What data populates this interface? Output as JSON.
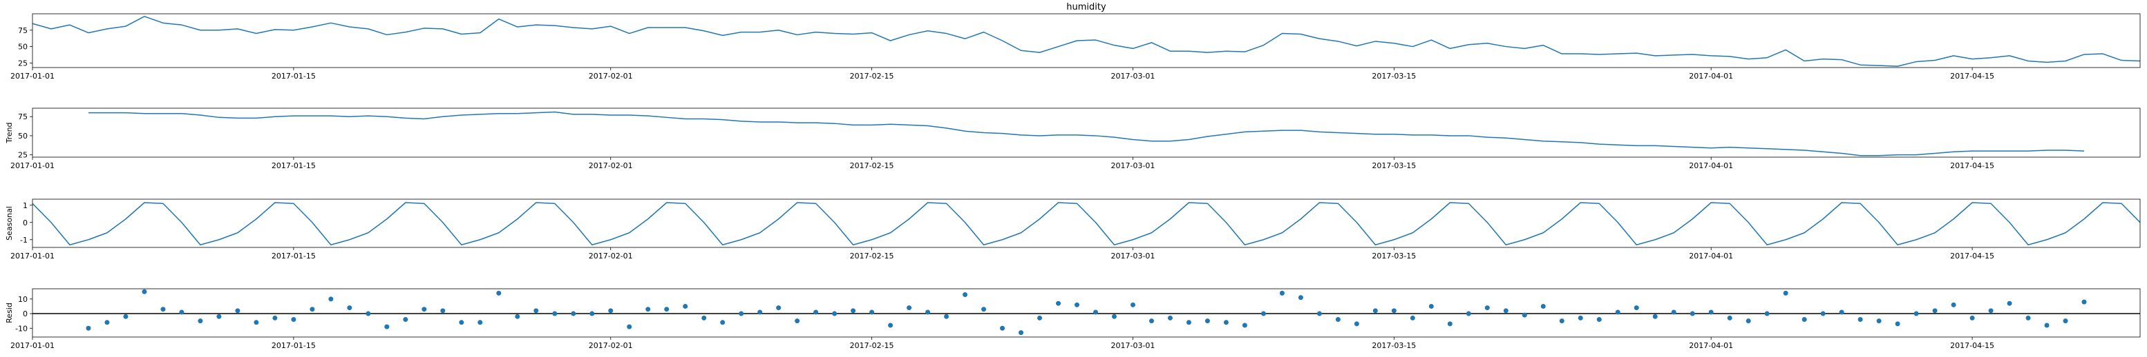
{
  "chart_data": [
    {
      "type": "line",
      "title": "humidity",
      "ylabel": "",
      "xlabel": "",
      "ylim": [
        18,
        100
      ],
      "yticks": [
        25,
        50,
        75
      ],
      "xrange": [
        "2017-01-01",
        "2017-04-24"
      ],
      "xticks": [
        "2017-01-01",
        "2017-01-15",
        "2017-02-01",
        "2017-02-15",
        "2017-03-01",
        "2017-03-15",
        "2017-04-01",
        "2017-04-15"
      ],
      "grid": false,
      "color": "#1f77b4",
      "x": [
        "2017-01-01",
        "2017-01-02",
        "2017-01-03",
        "2017-01-04",
        "2017-01-05",
        "2017-01-06",
        "2017-01-07",
        "2017-01-08",
        "2017-01-09",
        "2017-01-10",
        "2017-01-11",
        "2017-01-12",
        "2017-01-13",
        "2017-01-14",
        "2017-01-15",
        "2017-01-16",
        "2017-01-17",
        "2017-01-18",
        "2017-01-19",
        "2017-01-20",
        "2017-01-21",
        "2017-01-22",
        "2017-01-23",
        "2017-01-24",
        "2017-01-25",
        "2017-01-26",
        "2017-01-27",
        "2017-01-28",
        "2017-01-29",
        "2017-01-30",
        "2017-01-31",
        "2017-02-01",
        "2017-02-02",
        "2017-02-03",
        "2017-02-04",
        "2017-02-05",
        "2017-02-06",
        "2017-02-07",
        "2017-02-08",
        "2017-02-09",
        "2017-02-10",
        "2017-02-11",
        "2017-02-12",
        "2017-02-13",
        "2017-02-14",
        "2017-02-15",
        "2017-02-16",
        "2017-02-17",
        "2017-02-18",
        "2017-02-19",
        "2017-02-20",
        "2017-02-21",
        "2017-02-22",
        "2017-02-23",
        "2017-02-24",
        "2017-02-25",
        "2017-02-26",
        "2017-02-27",
        "2017-02-28",
        "2017-03-01",
        "2017-03-02",
        "2017-03-03",
        "2017-03-04",
        "2017-03-05",
        "2017-03-06",
        "2017-03-07",
        "2017-03-08",
        "2017-03-09",
        "2017-03-10",
        "2017-03-11",
        "2017-03-12",
        "2017-03-13",
        "2017-03-14",
        "2017-03-15",
        "2017-03-16",
        "2017-03-17",
        "2017-03-18",
        "2017-03-19",
        "2017-03-20",
        "2017-03-21",
        "2017-03-22",
        "2017-03-23",
        "2017-03-24",
        "2017-03-25",
        "2017-03-26",
        "2017-03-27",
        "2017-03-28",
        "2017-03-29",
        "2017-03-30",
        "2017-03-31",
        "2017-04-01",
        "2017-04-02",
        "2017-04-03",
        "2017-04-04",
        "2017-04-05",
        "2017-04-06",
        "2017-04-07",
        "2017-04-08",
        "2017-04-09",
        "2017-04-10",
        "2017-04-11",
        "2017-04-12",
        "2017-04-13",
        "2017-04-14",
        "2017-04-15",
        "2017-04-16",
        "2017-04-17",
        "2017-04-18",
        "2017-04-19",
        "2017-04-20",
        "2017-04-21",
        "2017-04-22",
        "2017-04-23",
        "2017-04-24"
      ],
      "values": [
        85.0,
        77.0,
        83.0,
        71.0,
        77.0,
        81.0,
        96.0,
        86.0,
        83.0,
        75.0,
        75.0,
        77.0,
        70.0,
        76.0,
        75.0,
        80.0,
        86.0,
        80.0,
        77.0,
        68.0,
        72.0,
        78.0,
        77.0,
        69.0,
        71.0,
        92.0,
        80.0,
        83.0,
        82.0,
        79.0,
        77.0,
        81.0,
        70.0,
        79.0,
        79.0,
        79.0,
        74.0,
        67.0,
        72.0,
        72.0,
        75.0,
        68.0,
        72.0,
        70.0,
        69.0,
        71.0,
        59.0,
        68.0,
        74.0,
        70.0,
        62.0,
        72.0,
        59.0,
        44.0,
        41.0,
        50.0,
        59.0,
        60.0,
        52.0,
        47.0,
        56.0,
        43.0,
        43.0,
        41.0,
        43.0,
        42.0,
        52.0,
        70.0,
        69.0,
        62.0,
        58.0,
        51.0,
        58.0,
        55.0,
        50.0,
        60.0,
        47.0,
        53.0,
        55.0,
        50.0,
        47.0,
        52.0,
        39.0,
        39.0,
        38.0,
        39.0,
        40.0,
        36.0,
        37.0,
        38.0,
        36.0,
        35.0,
        31.0,
        33.0,
        45.0,
        28.0,
        31.0,
        30.0,
        22.0,
        21.0,
        20.0,
        27.0,
        29.0,
        36.0,
        31.0,
        33.0,
        36.0,
        28.0,
        26.0,
        28.0,
        38.0,
        39.0,
        29.0,
        28.0
      ]
    },
    {
      "type": "line",
      "title": "",
      "ylabel": "Trend",
      "xlabel": "",
      "ylim": [
        22,
        86
      ],
      "yticks": [
        25,
        50,
        75
      ],
      "xrange": [
        "2017-01-01",
        "2017-04-24"
      ],
      "xticks": [
        "2017-01-01",
        "2017-01-15",
        "2017-02-01",
        "2017-02-15",
        "2017-03-01",
        "2017-03-15",
        "2017-04-01",
        "2017-04-15"
      ],
      "grid": false,
      "color": "#1f77b4",
      "x": [
        "2017-01-04",
        "2017-01-05",
        "2017-01-06",
        "2017-01-07",
        "2017-01-08",
        "2017-01-09",
        "2017-01-10",
        "2017-01-11",
        "2017-01-12",
        "2017-01-13",
        "2017-01-14",
        "2017-01-15",
        "2017-01-16",
        "2017-01-17",
        "2017-01-18",
        "2017-01-19",
        "2017-01-20",
        "2017-01-21",
        "2017-01-22",
        "2017-01-23",
        "2017-01-24",
        "2017-01-25",
        "2017-01-26",
        "2017-01-27",
        "2017-01-28",
        "2017-01-29",
        "2017-01-30",
        "2017-01-31",
        "2017-02-01",
        "2017-02-02",
        "2017-02-03",
        "2017-02-04",
        "2017-02-05",
        "2017-02-06",
        "2017-02-07",
        "2017-02-08",
        "2017-02-09",
        "2017-02-10",
        "2017-02-11",
        "2017-02-12",
        "2017-02-13",
        "2017-02-14",
        "2017-02-15",
        "2017-02-16",
        "2017-02-17",
        "2017-02-18",
        "2017-02-19",
        "2017-02-20",
        "2017-02-21",
        "2017-02-22",
        "2017-02-23",
        "2017-02-24",
        "2017-02-25",
        "2017-02-26",
        "2017-02-27",
        "2017-02-28",
        "2017-03-01",
        "2017-03-02",
        "2017-03-03",
        "2017-03-04",
        "2017-03-05",
        "2017-03-06",
        "2017-03-07",
        "2017-03-08",
        "2017-03-09",
        "2017-03-10",
        "2017-03-11",
        "2017-03-12",
        "2017-03-13",
        "2017-03-14",
        "2017-03-15",
        "2017-03-16",
        "2017-03-17",
        "2017-03-18",
        "2017-03-19",
        "2017-03-20",
        "2017-03-21",
        "2017-03-22",
        "2017-03-23",
        "2017-03-24",
        "2017-03-25",
        "2017-03-26",
        "2017-03-27",
        "2017-03-28",
        "2017-03-29",
        "2017-03-30",
        "2017-03-31",
        "2017-04-01",
        "2017-04-02",
        "2017-04-03",
        "2017-04-04",
        "2017-04-05",
        "2017-04-06",
        "2017-04-07",
        "2017-04-08",
        "2017-04-09",
        "2017-04-10",
        "2017-04-11",
        "2017-04-12",
        "2017-04-13",
        "2017-04-14",
        "2017-04-15",
        "2017-04-16",
        "2017-04-17",
        "2017-04-18",
        "2017-04-19",
        "2017-04-20",
        "2017-04-21"
      ],
      "values": [
        80.0,
        80.0,
        80.0,
        79.0,
        79.0,
        79.0,
        77.0,
        74.0,
        73.0,
        73.0,
        75.0,
        76.0,
        76.0,
        76.0,
        75.0,
        76.0,
        75.0,
        73.0,
        72.0,
        75.0,
        77.0,
        78.0,
        79.0,
        79.0,
        80.0,
        81.0,
        78.0,
        78.0,
        77.0,
        77.0,
        76.0,
        74.0,
        72.0,
        72.0,
        71.0,
        69.0,
        68.0,
        68.0,
        67.0,
        67.0,
        66.0,
        64.0,
        64.0,
        65.0,
        64.0,
        63.0,
        60.0,
        56.0,
        54.0,
        53.0,
        51.0,
        50.0,
        51.0,
        51.0,
        50.0,
        48.0,
        45.0,
        43.0,
        43.0,
        45.0,
        49.0,
        52.0,
        55.0,
        56.0,
        57.0,
        57.0,
        55.0,
        54.0,
        53.0,
        52.0,
        52.0,
        51.0,
        51.0,
        50.0,
        50.0,
        48.0,
        47.0,
        45.0,
        43.0,
        42.0,
        41.0,
        39.0,
        38.0,
        37.0,
        37.0,
        36.0,
        35.0,
        34.0,
        35.0,
        34.0,
        33.0,
        32.0,
        31.0,
        29.0,
        27.0,
        24.0,
        24.0,
        25.0,
        25.0,
        27.0,
        29.0,
        30.0,
        30.0,
        30.0,
        30.0,
        31.0,
        31.0,
        30.0
      ]
    },
    {
      "type": "line",
      "title": "",
      "ylabel": "Seasonal",
      "xlabel": "",
      "ylim": [
        -1.45,
        1.35
      ],
      "yticks": [
        -1,
        0,
        1
      ],
      "xrange": [
        "2017-01-01",
        "2017-04-24"
      ],
      "xticks": [
        "2017-01-01",
        "2017-01-15",
        "2017-02-01",
        "2017-02-15",
        "2017-03-01",
        "2017-03-15",
        "2017-04-01",
        "2017-04-15"
      ],
      "grid": false,
      "color": "#1f77b4",
      "period": 7,
      "start": "2017-01-01",
      "end": "2017-04-24",
      "pattern": [
        1.1,
        0.0,
        -1.3,
        -1.0,
        -0.6,
        0.2,
        1.15
      ]
    },
    {
      "type": "scatter",
      "title": "",
      "ylabel": "Resid",
      "xlabel": "",
      "ylim": [
        -16,
        17
      ],
      "yticks": [
        -10,
        0,
        10
      ],
      "zero_line": true,
      "xrange": [
        "2017-01-01",
        "2017-04-24"
      ],
      "xticks": [
        "2017-01-01",
        "2017-01-15",
        "2017-02-01",
        "2017-02-15",
        "2017-03-01",
        "2017-03-15",
        "2017-04-01",
        "2017-04-15"
      ],
      "grid": false,
      "color": "#1f77b4",
      "x": [
        "2017-01-04",
        "2017-01-05",
        "2017-01-06",
        "2017-01-07",
        "2017-01-08",
        "2017-01-09",
        "2017-01-10",
        "2017-01-11",
        "2017-01-12",
        "2017-01-13",
        "2017-01-14",
        "2017-01-15",
        "2017-01-16",
        "2017-01-17",
        "2017-01-18",
        "2017-01-19",
        "2017-01-20",
        "2017-01-21",
        "2017-01-22",
        "2017-01-23",
        "2017-01-24",
        "2017-01-25",
        "2017-01-26",
        "2017-01-27",
        "2017-01-28",
        "2017-01-29",
        "2017-01-30",
        "2017-01-31",
        "2017-02-01",
        "2017-02-02",
        "2017-02-03",
        "2017-02-04",
        "2017-02-05",
        "2017-02-06",
        "2017-02-07",
        "2017-02-08",
        "2017-02-09",
        "2017-02-10",
        "2017-02-11",
        "2017-02-12",
        "2017-02-13",
        "2017-02-14",
        "2017-02-15",
        "2017-02-16",
        "2017-02-17",
        "2017-02-18",
        "2017-02-19",
        "2017-02-20",
        "2017-02-21",
        "2017-02-22",
        "2017-02-23",
        "2017-02-24",
        "2017-02-25",
        "2017-02-26",
        "2017-02-27",
        "2017-02-28",
        "2017-03-01",
        "2017-03-02",
        "2017-03-03",
        "2017-03-04",
        "2017-03-05",
        "2017-03-06",
        "2017-03-07",
        "2017-03-08",
        "2017-03-09",
        "2017-03-10",
        "2017-03-11",
        "2017-03-12",
        "2017-03-13",
        "2017-03-14",
        "2017-03-15",
        "2017-03-16",
        "2017-03-17",
        "2017-03-18",
        "2017-03-19",
        "2017-03-20",
        "2017-03-21",
        "2017-03-22",
        "2017-03-23",
        "2017-03-24",
        "2017-03-25",
        "2017-03-26",
        "2017-03-27",
        "2017-03-28",
        "2017-03-29",
        "2017-03-30",
        "2017-03-31",
        "2017-04-01",
        "2017-04-02",
        "2017-04-03",
        "2017-04-04",
        "2017-04-05",
        "2017-04-06",
        "2017-04-07",
        "2017-04-08",
        "2017-04-09",
        "2017-04-10",
        "2017-04-11",
        "2017-04-12",
        "2017-04-13",
        "2017-04-14",
        "2017-04-15",
        "2017-04-16",
        "2017-04-17",
        "2017-04-18",
        "2017-04-19",
        "2017-04-20",
        "2017-04-21"
      ],
      "values": [
        -10.0,
        -6.0,
        -2.0,
        15.0,
        3.0,
        1.0,
        -5.0,
        -2.0,
        2.0,
        -6.0,
        -3.0,
        -4.0,
        3.0,
        10.0,
        4.0,
        0.0,
        -9.0,
        -4.0,
        3.0,
        2.0,
        -6.0,
        -6.0,
        14.0,
        -2.0,
        2.0,
        0.0,
        0.0,
        0.0,
        2.0,
        -9.0,
        3.0,
        3.0,
        5.0,
        -3.0,
        -6.0,
        0.0,
        1.0,
        4.0,
        -5.0,
        1.0,
        0.0,
        2.0,
        1.0,
        -8.0,
        4.0,
        1.0,
        -2.0,
        13.0,
        3.0,
        -10.0,
        -13.0,
        -3.0,
        7.0,
        6.0,
        1.0,
        -2.0,
        6.0,
        -5.0,
        -3.0,
        -6.0,
        -5.0,
        -6.0,
        -8.0,
        0.0,
        14.0,
        11.0,
        0.0,
        -4.0,
        -7.0,
        2.0,
        2.0,
        -3.0,
        5.0,
        -7.0,
        0.0,
        4.0,
        2.0,
        -1.0,
        5.0,
        -5.0,
        -3.0,
        -4.0,
        1.0,
        4.0,
        -2.0,
        1.0,
        0.0,
        1.0,
        -3.0,
        -5.0,
        0.0,
        14.0,
        -4.0,
        0.0,
        1.0,
        -4.0,
        -5.0,
        -7.0,
        0.0,
        2.0,
        6.0,
        -3.0,
        2.0,
        7.0,
        -3.0,
        -8.0,
        -5.0,
        8.0
      ]
    }
  ]
}
